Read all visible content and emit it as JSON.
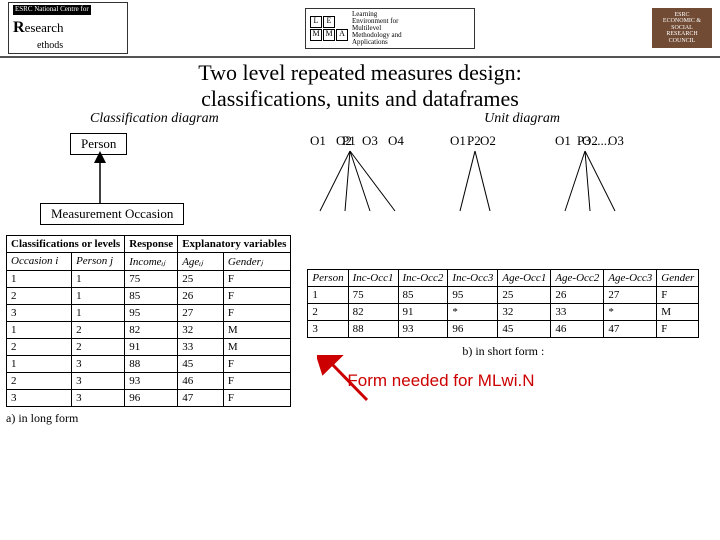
{
  "logos": {
    "ncrm_top": "ESRC National Centre for",
    "ncrm_big_R": "R",
    "ncrm_word": "esearch",
    "ncrm_sub": "ethods",
    "lemma_letters": "LEMMA",
    "lemma_lines": "Learning\nEnvironment for\nMultilevel\nMethodology and\nApplications",
    "esrc": "ESRC\nECONOMIC & SOCIAL\nRESEARCH COUNCIL"
  },
  "title_l1": "Two level repeated measures design:",
  "title_l2": "classifications, units and dataframes",
  "sub_left": "Classification diagram",
  "sub_right": "Unit diagram",
  "class_diag": {
    "top": "Person",
    "bottom": "Measurement Occasion"
  },
  "unit_diag": {
    "p1": "P1",
    "p2": "P2",
    "p3": "P3 .....",
    "o": [
      "O1",
      "O2",
      "O3",
      "O4",
      "O1",
      "O2",
      "O1",
      "O2",
      "O3"
    ]
  },
  "tableA": {
    "head1": [
      "Classifications or levels",
      "Response",
      "Explanatory variables"
    ],
    "head2": [
      "Occasion i",
      "Person j",
      "Incomeᵢⱼ",
      "Ageᵢⱼ",
      "Genderⱼ"
    ],
    "rows": [
      [
        "1",
        "1",
        "75",
        "25",
        "F"
      ],
      [
        "2",
        "1",
        "85",
        "26",
        "F"
      ],
      [
        "3",
        "1",
        "95",
        "27",
        "F"
      ],
      [
        "1",
        "2",
        "82",
        "32",
        "M"
      ],
      [
        "2",
        "2",
        "91",
        "33",
        "M"
      ],
      [
        "1",
        "3",
        "88",
        "45",
        "F"
      ],
      [
        "2",
        "3",
        "93",
        "46",
        "F"
      ],
      [
        "3",
        "3",
        "96",
        "47",
        "F"
      ]
    ],
    "caption": "a) in long form"
  },
  "tableB": {
    "head": [
      "Person",
      "Inc-Occ1",
      "Inc-Occ2",
      "Inc-Occ3",
      "Age-Occ1",
      "Age-Occ2",
      "Age-Occ3",
      "Gender"
    ],
    "rows": [
      [
        "1",
        "75",
        "85",
        "95",
        "25",
        "26",
        "27",
        "F"
      ],
      [
        "2",
        "82",
        "91",
        "*",
        "32",
        "33",
        "*",
        "M"
      ],
      [
        "3",
        "88",
        "93",
        "96",
        "45",
        "46",
        "47",
        "F"
      ]
    ],
    "caption": "b) in short form :"
  },
  "red_text": "Form needed for MLwi.N",
  "colors": {
    "arrow": "#cc0000"
  }
}
